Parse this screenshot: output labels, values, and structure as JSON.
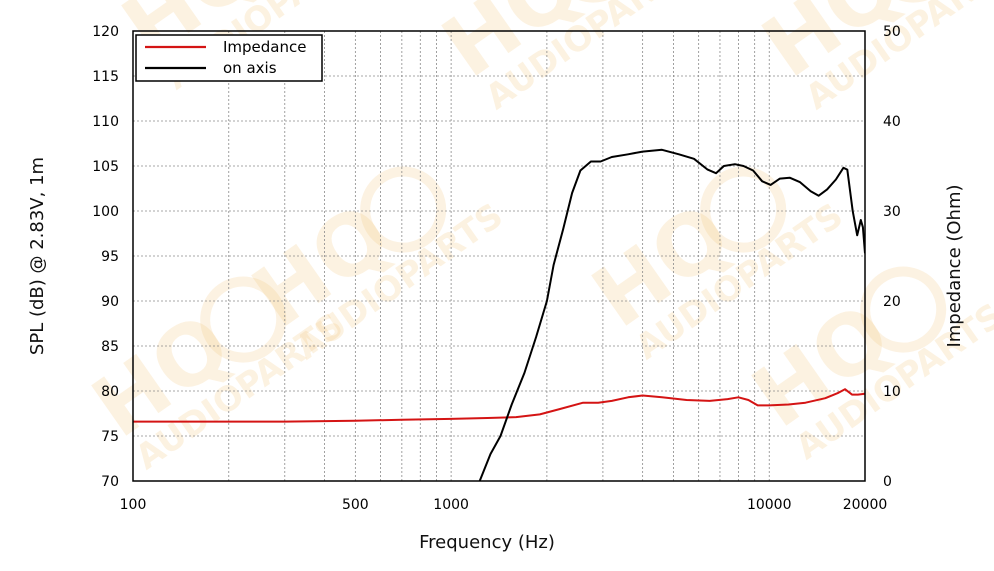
{
  "chart_data": {
    "type": "line",
    "xlabel": "Frequency (Hz)",
    "ylabel": "SPL (dB) @ 2.83V, 1m",
    "y2label": "Impedance (Ohm)",
    "xscale": "log",
    "xlim": [
      100,
      20000
    ],
    "ylim": [
      70,
      120
    ],
    "y2lim": [
      0,
      50
    ],
    "x_ticks": [
      {
        "value": 100,
        "label": "100"
      },
      {
        "value": 500,
        "label": "500"
      },
      {
        "value": 1000,
        "label": "1000"
      },
      {
        "value": 10000,
        "label": "10000"
      },
      {
        "value": 20000,
        "label": "20000"
      }
    ],
    "y_ticks": [
      "70",
      "75",
      "80",
      "85",
      "90",
      "95",
      "100",
      "105",
      "110",
      "115",
      "120"
    ],
    "y2_ticks": [
      "0",
      "10",
      "20",
      "30",
      "40",
      "50"
    ],
    "grid": true,
    "legend_position": "top-left",
    "series": [
      {
        "name": "Impedance",
        "axis": "right",
        "color": "#d41414",
        "points": [
          [
            100,
            6.6
          ],
          [
            200,
            6.6
          ],
          [
            300,
            6.6
          ],
          [
            500,
            6.7
          ],
          [
            700,
            6.8
          ],
          [
            1000,
            6.9
          ],
          [
            1300,
            7.0
          ],
          [
            1600,
            7.1
          ],
          [
            1900,
            7.4
          ],
          [
            2200,
            8.0
          ],
          [
            2600,
            8.7
          ],
          [
            2900,
            8.7
          ],
          [
            3200,
            8.9
          ],
          [
            3600,
            9.3
          ],
          [
            4000,
            9.5
          ],
          [
            4600,
            9.3
          ],
          [
            5500,
            9.0
          ],
          [
            6500,
            8.9
          ],
          [
            7400,
            9.1
          ],
          [
            8000,
            9.3
          ],
          [
            8600,
            9.0
          ],
          [
            9200,
            8.4
          ],
          [
            10000,
            8.4
          ],
          [
            11500,
            8.5
          ],
          [
            13000,
            8.7
          ],
          [
            15000,
            9.2
          ],
          [
            16500,
            9.8
          ],
          [
            17300,
            10.2
          ],
          [
            18200,
            9.6
          ],
          [
            19000,
            9.6
          ],
          [
            20000,
            9.7
          ]
        ]
      },
      {
        "name": "on axis",
        "axis": "left",
        "color": "#000000",
        "points": [
          [
            1230,
            70.0
          ],
          [
            1330,
            73.0
          ],
          [
            1430,
            75.0
          ],
          [
            1550,
            78.5
          ],
          [
            1700,
            82.0
          ],
          [
            1850,
            86.0
          ],
          [
            2000,
            90.0
          ],
          [
            2100,
            94.0
          ],
          [
            2250,
            98.0
          ],
          [
            2400,
            102.0
          ],
          [
            2550,
            104.5
          ],
          [
            2750,
            105.5
          ],
          [
            2950,
            105.5
          ],
          [
            3200,
            106.0
          ],
          [
            3600,
            106.3
          ],
          [
            4000,
            106.6
          ],
          [
            4600,
            106.8
          ],
          [
            5200,
            106.3
          ],
          [
            5800,
            105.8
          ],
          [
            6400,
            104.6
          ],
          [
            6800,
            104.2
          ],
          [
            7200,
            105.0
          ],
          [
            7800,
            105.2
          ],
          [
            8300,
            105.0
          ],
          [
            8900,
            104.5
          ],
          [
            9500,
            103.3
          ],
          [
            10100,
            102.9
          ],
          [
            10800,
            103.6
          ],
          [
            11600,
            103.7
          ],
          [
            12500,
            103.2
          ],
          [
            13500,
            102.2
          ],
          [
            14300,
            101.7
          ],
          [
            15200,
            102.4
          ],
          [
            16200,
            103.5
          ],
          [
            17100,
            104.8
          ],
          [
            17600,
            104.6
          ],
          [
            18300,
            100.0
          ],
          [
            18900,
            97.3
          ],
          [
            19400,
            99.0
          ],
          [
            19700,
            98.2
          ],
          [
            20000,
            95.3
          ]
        ]
      }
    ]
  },
  "watermark": {
    "brand": "HQ",
    "sub": "AUDIOPARTS",
    "color": "#f3c57a"
  }
}
